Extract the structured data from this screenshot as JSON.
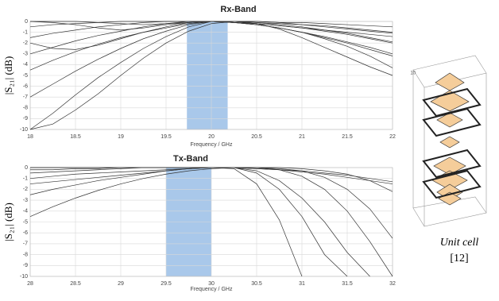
{
  "chart_data": [
    {
      "type": "line",
      "title": "Rx-Band",
      "x_label": "Frequency / GHz",
      "y_label": "|S₂₁| (dB)",
      "x": [
        18,
        18.25,
        18.5,
        18.75,
        19,
        19.25,
        19.5,
        19.75,
        20,
        20.25,
        20.5,
        20.75,
        21,
        21.25,
        21.5,
        21.75,
        22
      ],
      "series": [
        {
          "color": "#333333",
          "values": [
            -10,
            -8.5,
            -6.8,
            -5.2,
            -3.8,
            -2.5,
            -1.4,
            -0.5,
            0,
            -0.1,
            -0.3,
            -0.6,
            -1,
            -1.4,
            -1.9,
            -2.4,
            -3
          ]
        },
        {
          "color": "#333333",
          "values": [
            -7,
            -5.8,
            -4.6,
            -3.5,
            -2.5,
            -1.6,
            -0.9,
            -0.3,
            0,
            -0.1,
            -0.2,
            -0.4,
            -0.6,
            -0.8,
            -1,
            -1.2,
            -1.4
          ]
        },
        {
          "color": "#333333",
          "values": [
            -4.5,
            -3.6,
            -2.8,
            -2.1,
            -1.5,
            -1,
            -0.6,
            -0.2,
            0,
            0,
            -0.1,
            -0.3,
            -0.5,
            -0.8,
            -1.1,
            -1.5,
            -1.9
          ]
        },
        {
          "color": "#333333",
          "values": [
            -3,
            -2.4,
            -1.8,
            -1.3,
            -0.9,
            -0.5,
            -0.2,
            0,
            0,
            -0.1,
            -0.3,
            -0.6,
            -1,
            -1.5,
            -2,
            -2.6,
            -3.2
          ]
        },
        {
          "color": "#333333",
          "values": [
            -1.5,
            -1.1,
            -0.8,
            -0.5,
            -0.3,
            -0.1,
            0,
            0,
            0,
            -0.1,
            -0.3,
            -0.6,
            -1,
            -1.6,
            -2.3,
            -3.2,
            -4.3
          ]
        },
        {
          "color": "#333333",
          "values": [
            -0.5,
            -0.3,
            -0.2,
            -0.1,
            0,
            0,
            0,
            0,
            0,
            -0.1,
            -0.2,
            -0.4,
            -0.6,
            -0.9,
            -1.2,
            -1.6,
            -2
          ]
        },
        {
          "color": "#333333",
          "values": [
            0,
            0,
            0,
            -0.1,
            -0.2,
            -0.3,
            -0.2,
            -0.1,
            0,
            0,
            -0.1,
            -0.2,
            -0.3,
            -0.5,
            -0.7,
            -0.9,
            -1.1
          ]
        },
        {
          "color": "#333333",
          "values": [
            -10,
            -9.5,
            -8.2,
            -6.7,
            -5,
            -3.4,
            -2,
            -0.9,
            -0.2,
            0,
            -0.2,
            -0.7,
            -1.5,
            -2.4,
            -3.3,
            -4.2,
            -5
          ]
        },
        {
          "color": "#333333",
          "values": [
            -2,
            -2.5,
            -2.6,
            -2.2,
            -1.6,
            -1,
            -0.5,
            -0.1,
            0,
            0,
            0,
            -0.1,
            -0.3,
            -0.4,
            -0.6,
            -0.8,
            -1
          ]
        },
        {
          "color": "#333333",
          "values": [
            0,
            -0.1,
            -0.3,
            -0.6,
            -0.8,
            -0.6,
            -0.3,
            -0.1,
            0,
            0,
            0,
            -0.1,
            -0.1,
            -0.2,
            -0.3,
            -0.4,
            -0.5
          ]
        }
      ],
      "highlight": {
        "range": [
          19.73,
          20.18
        ],
        "color": "#a9c8ea"
      },
      "xlim": [
        18,
        22
      ],
      "ylim": [
        -10,
        0
      ],
      "xticks": [
        18,
        18.5,
        19,
        19.5,
        20,
        20.5,
        21,
        21.5,
        22
      ],
      "yticks": [
        0,
        -1,
        -2,
        -3,
        -4,
        -5,
        -6,
        -7,
        -8,
        -9,
        -10
      ],
      "grid": true
    },
    {
      "type": "line",
      "title": "Tx-Band",
      "x_label": "Frequency / GHz",
      "y_label": "|S₂₁| (dB)",
      "x": [
        28,
        28.25,
        28.5,
        28.75,
        29,
        29.25,
        29.5,
        29.75,
        30,
        30.25,
        30.5,
        30.75,
        31,
        31.25,
        31.5,
        31.75,
        32
      ],
      "series": [
        {
          "color": "#333333",
          "values": [
            -4.5,
            -3.6,
            -2.8,
            -2.1,
            -1.5,
            -1,
            -0.6,
            -0.3,
            -0.1,
            0,
            -0.1,
            -0.2,
            -0.4,
            -0.6,
            -0.9,
            -1.2,
            -1.5
          ]
        },
        {
          "color": "#333333",
          "values": [
            -1.5,
            -1.3,
            -1.1,
            -0.9,
            -0.7,
            -0.5,
            -0.3,
            -0.1,
            0,
            0,
            -0.3,
            -1.2,
            -2.8,
            -5,
            -7.8,
            -10,
            null
          ]
        },
        {
          "color": "#333333",
          "values": [
            -0.5,
            -0.4,
            -0.3,
            -0.2,
            -0.1,
            0,
            0,
            0,
            0,
            0,
            -0.5,
            -2,
            -4.5,
            -8,
            -10,
            null,
            null
          ]
        },
        {
          "color": "#333333",
          "values": [
            0,
            0,
            0,
            0,
            0,
            0,
            0,
            0,
            0,
            0,
            0,
            -0.2,
            -0.8,
            -2,
            -4,
            -6.8,
            -10
          ]
        },
        {
          "color": "#333333",
          "values": [
            -1,
            -0.8,
            -0.6,
            -0.5,
            -0.4,
            -0.3,
            -0.2,
            -0.1,
            0,
            0,
            0,
            -0.1,
            -0.3,
            -0.9,
            -2,
            -3.8,
            -6.5
          ]
        },
        {
          "color": "#333333",
          "values": [
            -2.5,
            -2,
            -1.6,
            -1.2,
            -0.9,
            -0.6,
            -0.3,
            -0.1,
            0,
            0,
            -0.1,
            -0.2,
            -0.3,
            -0.5,
            -0.7,
            -1,
            -1.3
          ]
        },
        {
          "color": "#333333",
          "values": [
            0,
            0,
            0,
            0,
            0,
            0,
            0,
            0,
            0,
            -0.1,
            -1.5,
            -4.8,
            -10,
            null,
            null,
            null,
            null
          ]
        },
        {
          "color": "#333333",
          "values": [
            -0.2,
            -0.2,
            -0.1,
            -0.1,
            0,
            0,
            0,
            0,
            0,
            0,
            0,
            0,
            -0.1,
            -0.3,
            -0.6,
            -1.2,
            -2.2
          ]
        }
      ],
      "highlight": {
        "range": [
          29.5,
          30
        ],
        "color": "#a9c8ea"
      },
      "xlim": [
        28,
        32
      ],
      "ylim": [
        -10,
        0
      ],
      "xticks": [
        28,
        28.5,
        29,
        29.5,
        30,
        30.5,
        31,
        31.5,
        32
      ],
      "yticks": [
        0,
        -1,
        -2,
        -3,
        -4,
        -5,
        -6,
        -7,
        -8,
        -9,
        -10
      ],
      "grid": true
    }
  ],
  "figure": {
    "caption": "Unit cell",
    "reference": "[12]",
    "box_axis_label": "10"
  }
}
